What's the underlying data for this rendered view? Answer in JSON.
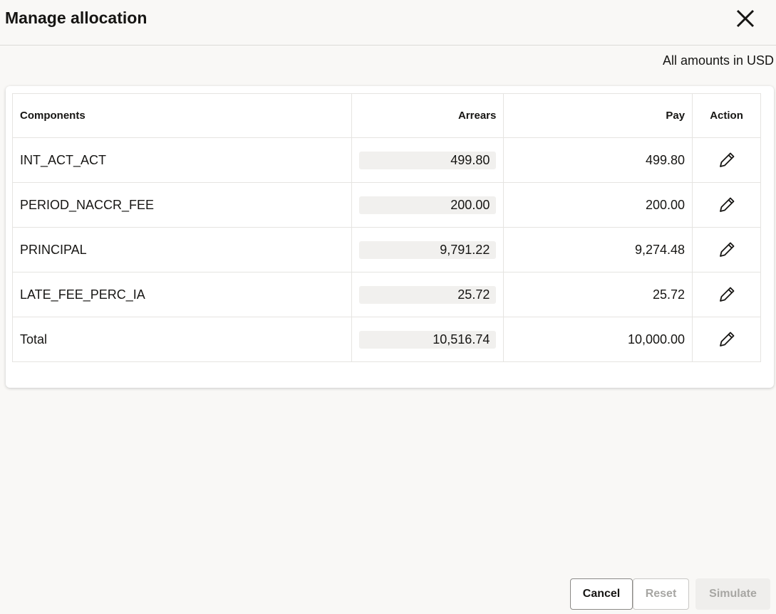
{
  "dialog": {
    "title": "Manage allocation",
    "currency_note": "All amounts in USD"
  },
  "table": {
    "headers": {
      "components": "Components",
      "arrears": "Arrears",
      "pay": "Pay",
      "action": "Action"
    },
    "rows": [
      {
        "component": "INT_ACT_ACT",
        "arrears": "499.80",
        "pay": "499.80"
      },
      {
        "component": "PERIOD_NACCR_FEE",
        "arrears": "200.00",
        "pay": "200.00"
      },
      {
        "component": "PRINCIPAL",
        "arrears": "9,791.22",
        "pay": "9,274.48"
      },
      {
        "component": "LATE_FEE_PERC_IA",
        "arrears": "25.72",
        "pay": "25.72"
      },
      {
        "component": "Total",
        "arrears": "10,516.74",
        "pay": "10,000.00"
      }
    ]
  },
  "footer": {
    "cancel": "Cancel",
    "reset": "Reset",
    "simulate": "Simulate"
  }
}
